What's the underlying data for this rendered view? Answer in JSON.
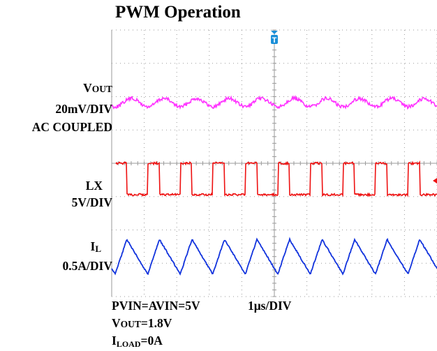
{
  "title": "PWM Operation",
  "chart_data": {
    "type": "line",
    "title": "PWM Operation",
    "grid": true,
    "x_divisions": 10,
    "y_divisions": 8,
    "time_per_div": "1μs/DIV",
    "trigger_marker": "T",
    "switching_cycles_on_screen": 10,
    "series": [
      {
        "name": "VOUT",
        "scale": "20mV/DIV",
        "coupling": "AC COUPLED",
        "color": "#ff33ff",
        "waveform": "ripple"
      },
      {
        "name": "LX",
        "scale": "5V/DIV",
        "color": "#ee1111",
        "waveform": "square",
        "low_v": 0,
        "high_v": 5,
        "duty": 0.36
      },
      {
        "name": "IL",
        "scale": "0.5A/DIV",
        "color": "#1133dd",
        "waveform": "triangle",
        "peak_to_peak_a": 0.5
      }
    ]
  },
  "labels": {
    "vout_main": "V",
    "vout_sub": "OUT",
    "vout_scale": "20mV/DIV",
    "vout_coupling": "AC COUPLED",
    "lx_name": "LX",
    "lx_scale": "5V/DIV",
    "il_main": "I",
    "il_sub": "L",
    "il_scale": "0.5A/DIV"
  },
  "conditions": {
    "supply": "PVIN=AVIN=5V",
    "timebase": "1μs/DIV",
    "vout_main": "V",
    "vout_sub": "OUT",
    "vout_value": "=1.8V",
    "iload_main": "I",
    "iload_sub": "LOAD",
    "iload_value": "=0A"
  },
  "colors": {
    "grid": "#9a9a9a",
    "vout": "#ff33ff",
    "lx": "#ee1111",
    "il": "#1133dd",
    "trigger": "#1a8fd8"
  }
}
